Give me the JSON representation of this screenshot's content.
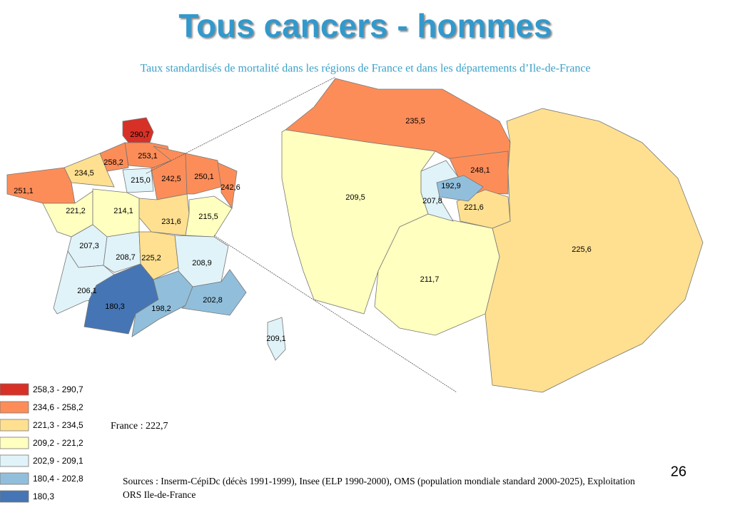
{
  "title": "Tous cancers - hommes",
  "subtitle": "Taux standardisés de mortalité dans les régions de France et dans les départements d’Ile-de-France",
  "france_map": {
    "regions": [
      "290,7",
      "253,1",
      "258,2",
      "234,5",
      "251,1",
      "215,0",
      "242,5",
      "250,1",
      "242,6",
      "221,2",
      "214,1",
      "231,6",
      "215,5",
      "207,3",
      "208,7",
      "225,2",
      "208,9",
      "206,1",
      "180,3",
      "198,2",
      "202,8",
      "209,1"
    ]
  },
  "idf_map": {
    "departments": [
      "235,5",
      "209,5",
      "248,1",
      "192,9",
      "207,8",
      "221,6",
      "211,7",
      "225,6"
    ]
  },
  "legend": [
    "258,3 - 290,7",
    "234,6 - 258,2",
    "221,3 - 234,5",
    "209,2 - 221,2",
    "202,9 - 209,1",
    "180,4 - 202,8",
    "180,3"
  ],
  "france_note": "France : 222,7",
  "page_number": "26",
  "sources": [
    "Sources : Inserm-CépiDc (décès 1991-1999), Insee (ELP 1990-2000), OMS (population mondiale standard 2000-2025), Exploitation",
    "ORS Ile-de-France"
  ]
}
